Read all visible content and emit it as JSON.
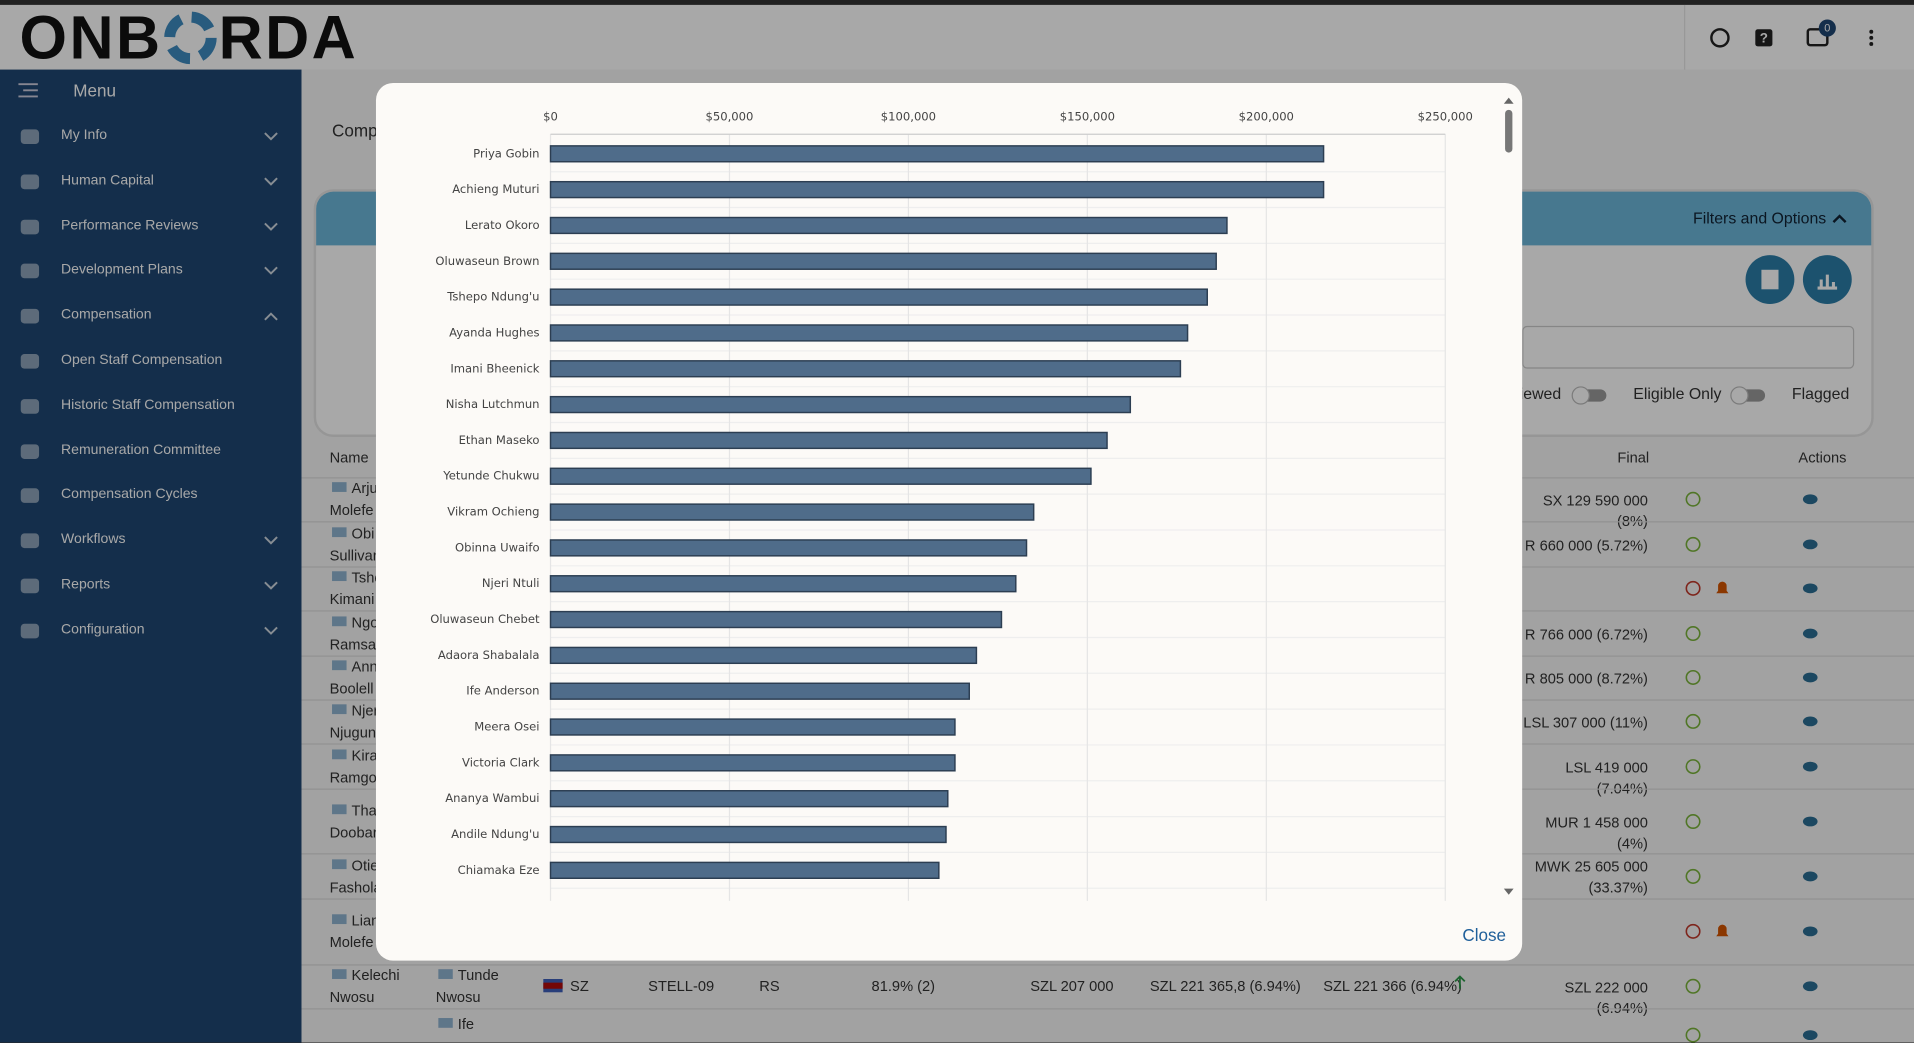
{
  "header": {
    "logo_left": "ONB",
    "logo_right": "RDA",
    "notification_count": 0
  },
  "sidebar": {
    "title": "Menu",
    "items": [
      {
        "label": "My Info",
        "expandable": true,
        "expanded": false
      },
      {
        "label": "Human Capital",
        "expandable": true,
        "expanded": false
      },
      {
        "label": "Performance Reviews",
        "expandable": true,
        "expanded": false
      },
      {
        "label": "Development Plans",
        "expandable": true,
        "expanded": false
      },
      {
        "label": "Compensation",
        "expandable": true,
        "expanded": true
      },
      {
        "label": "Open Staff Compensation",
        "expandable": false,
        "expanded": false
      },
      {
        "label": "Historic Staff Compensation",
        "expandable": false,
        "expanded": false
      },
      {
        "label": "Remuneration Committee",
        "expandable": false,
        "expanded": false
      },
      {
        "label": "Compensation Cycles",
        "expandable": false,
        "expanded": false
      },
      {
        "label": "Workflows",
        "expandable": true,
        "expanded": false
      },
      {
        "label": "Reports",
        "expandable": true,
        "expanded": false
      },
      {
        "label": "Configuration",
        "expandable": true,
        "expanded": false
      }
    ]
  },
  "page": {
    "title": "Comp",
    "filters_label": "Filters and Options",
    "toggles": [
      "iewed",
      "Eligible Only",
      "Flagged"
    ],
    "columns": [
      "Name",
      "Final",
      "Actions"
    ],
    "rows": [
      {
        "name": [
          "Arju",
          "Molefe"
        ],
        "final": "SX 129 590 000 (8%)",
        "flagged": false
      },
      {
        "name": [
          "Obi",
          "Sullivan"
        ],
        "final": "R 660 000 (5.72%)",
        "flagged": false
      },
      {
        "name": [
          "Tshe",
          "Kimani"
        ],
        "flagged": true
      },
      {
        "name": [
          "Ngo",
          "Ramsan"
        ],
        "final": "R 766 000 (6.72%)",
        "flagged": false
      },
      {
        "name": [
          "Ann",
          "Boolell"
        ],
        "final": "R 805 000 (8.72%)",
        "flagged": false
      },
      {
        "name": [
          "Njer",
          "Njugun"
        ],
        "final": "LSL 307 000 (11%)",
        "flagged": false
      },
      {
        "name": [
          "Kira",
          "Ramgoo"
        ],
        "final": "LSL 419 000 (7.04%)",
        "flagged": false
      },
      {
        "name": [
          "Tha",
          "Doobar"
        ],
        "final": "MUR 1 458 000 (4%)",
        "flagged": false
      },
      {
        "name": [
          "Otie",
          "Fashola"
        ],
        "final": "MWK 25 605 000 (33.37%)",
        "flagged": false
      },
      {
        "name": [
          "Lian",
          "Molefe"
        ],
        "flagged": true
      },
      {
        "name": [
          "Kelechi",
          "Nwosu"
        ],
        "reviewer": [
          "Tunde",
          "Nwosu"
        ],
        "country": "SZ",
        "code": "STELL-09",
        "grade": "RS",
        "rating": "81.9% (2)",
        "current": "SZL 207 000",
        "proposed": "SZL 221 365,8 (6.94%)",
        "recommended": "SZL 221 366 (6.94%)",
        "final": "SZL 222 000 (6.94%)",
        "flagged": false
      },
      {
        "reviewer": [
          "Ife"
        ],
        "flagged": false
      }
    ]
  },
  "modal": {
    "close": "Close"
  },
  "chart_data": {
    "type": "barh",
    "categories": [
      "Priya Gobin",
      "Achieng Muturi",
      "Lerato Okoro",
      "Oluwaseun Brown",
      "Tshepo Ndung'u",
      "Ayanda Hughes",
      "Imani Bheenick",
      "Nisha Lutchmun",
      "Ethan Maseko",
      "Yetunde Chukwu",
      "Vikram Ochieng",
      "Obinna Uwaifo",
      "Njeri Ntuli",
      "Oluwaseun Chebet",
      "Adaora Shabalala",
      "Ife Anderson",
      "Meera Osei",
      "Victoria Clark",
      "Ananya Wambui",
      "Andile Ndung'u",
      "Chiamaka Eze"
    ],
    "values": [
      216000,
      216000,
      189000,
      186000,
      183500,
      178000,
      176000,
      162000,
      155500,
      151000,
      135000,
      133000,
      130000,
      126000,
      119000,
      117000,
      113000,
      113000,
      111000,
      110500,
      108500
    ],
    "color": "#4f6c8a",
    "xlim": [
      0,
      250000
    ],
    "xticks": [
      {
        "value": 0,
        "label": "$0"
      },
      {
        "value": 50000,
        "label": "$50,000"
      },
      {
        "value": 100000,
        "label": "$100,000"
      },
      {
        "value": 150000,
        "label": "$150,000"
      },
      {
        "value": 200000,
        "label": "$200,000"
      },
      {
        "value": 250000,
        "label": "$250,000"
      }
    ],
    "grid": true
  }
}
